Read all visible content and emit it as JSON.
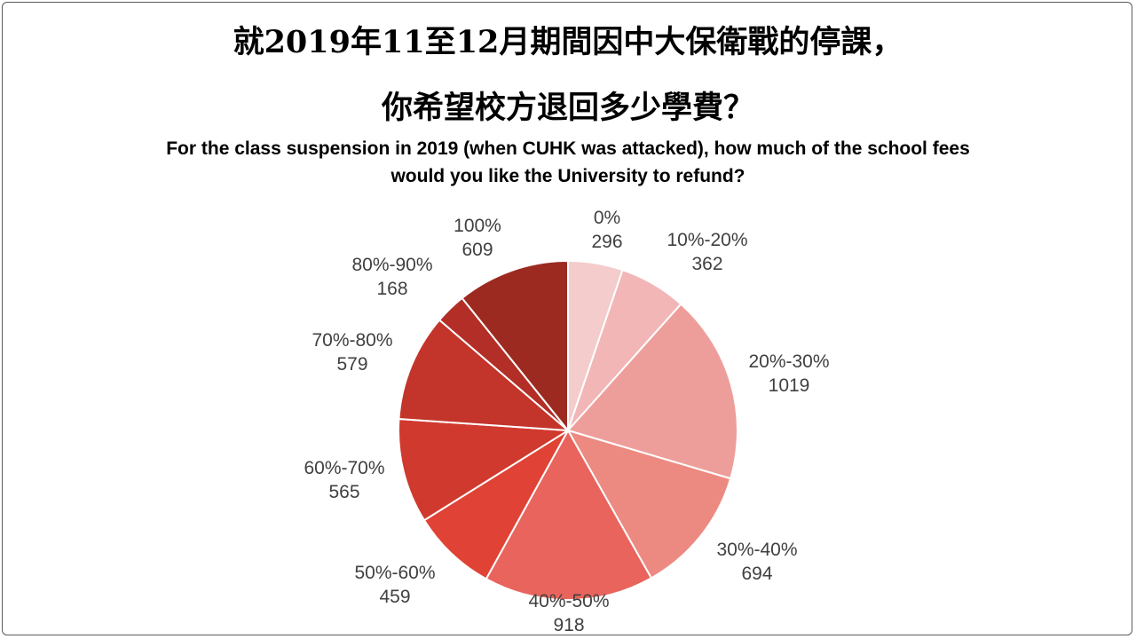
{
  "title": {
    "zh_line1": "就2019年11至12月期間因中大保衛戰的停課，",
    "zh_line2": "你希望校方退回多少學費？",
    "en_line1": "For the class suspension in 2019 (when CUHK was attacked), how much of the school fees",
    "en_line2": "would you like the University to refund?"
  },
  "chart_data": {
    "type": "pie",
    "categories": [
      "0%",
      "10%-20%",
      "20%-30%",
      "30%-40%",
      "40%-50%",
      "50%-60%",
      "60%-70%",
      "70%-80%",
      "80%-90%",
      "100%"
    ],
    "values": [
      296,
      362,
      1019,
      694,
      918,
      459,
      565,
      579,
      168,
      609
    ],
    "colors": [
      "#F4CCCC",
      "#F2B6B6",
      "#EE9E9A",
      "#EC8A82",
      "#E8645C",
      "#E04336",
      "#D0392E",
      "#C3342A",
      "#B22E26",
      "#9C2A21"
    ],
    "start": "12 o'clock",
    "direction": "clockwise",
    "slice_border_color": "#ffffff",
    "label_color": "#404040"
  }
}
